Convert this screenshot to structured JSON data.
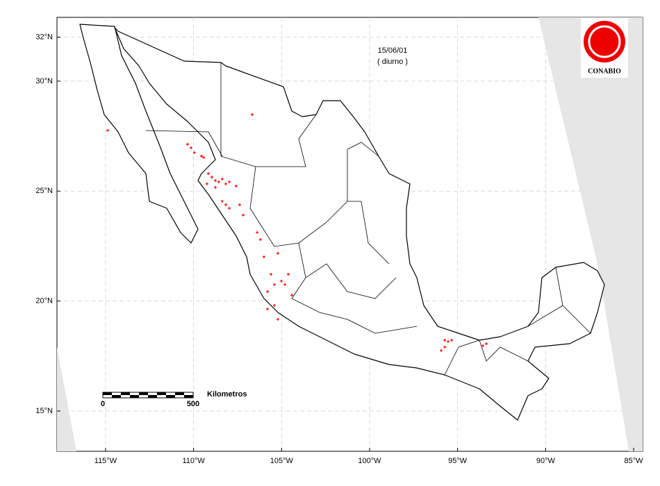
{
  "chart_data": {
    "type": "map",
    "date": "15/06/01",
    "period": "( diurno )",
    "logo": "CONABIO",
    "scale_bar": {
      "label": "Kilometros",
      "ticks": [
        0,
        500
      ]
    },
    "xlim": [
      -117.76,
      -84.49
    ],
    "ylim": [
      13.17,
      32.9
    ],
    "xticks": [
      {
        "value": -115,
        "label": "115°W"
      },
      {
        "value": -110,
        "label": "110°W"
      },
      {
        "value": -105,
        "label": "105°W"
      },
      {
        "value": -100,
        "label": "100°W"
      },
      {
        "value": -95,
        "label": "95°W"
      },
      {
        "value": -90,
        "label": "90°W"
      },
      {
        "value": -85,
        "label": "85°W"
      }
    ],
    "yticks": [
      {
        "value": 15,
        "label": "15°N"
      },
      {
        "value": 20,
        "label": "20°N"
      },
      {
        "value": 25,
        "label": "25°N"
      },
      {
        "value": 30,
        "label": "30°N"
      },
      {
        "value": 32,
        "label": "32°N"
      }
    ],
    "grid": true,
    "color": "#ff0000",
    "hotspots": {
      "lon": [
        -106.67,
        -114.88,
        -110.34,
        -110.14,
        -109.95,
        -109.55,
        -109.43,
        -109.16,
        -108.96,
        -108.76,
        -108.57,
        -108.37,
        -108.17,
        -107.97,
        -109.24,
        -108.76,
        -107.58,
        -108.37,
        -108.17,
        -107.97,
        -107.38,
        -107.18,
        -106.39,
        -106.2,
        -106.0,
        -105.21,
        -105.6,
        -105.41,
        -105.01,
        -104.62,
        -104.81,
        -105.8,
        -105.41,
        -105.8,
        -105.21,
        -104.42,
        -95.73,
        -95.54,
        -95.34,
        -95.73,
        -95.93,
        -93.37,
        -93.56
      ],
      "lat": [
        28.48,
        27.76,
        27.13,
        26.97,
        26.75,
        26.59,
        26.53,
        25.8,
        25.64,
        25.48,
        25.42,
        25.55,
        25.33,
        25.42,
        25.33,
        25.17,
        25.23,
        24.54,
        24.38,
        24.22,
        24.38,
        23.91,
        23.12,
        22.8,
        22.01,
        22.17,
        21.22,
        20.75,
        20.91,
        21.22,
        20.75,
        20.43,
        19.8,
        19.64,
        19.17,
        20.27,
        18.22,
        18.16,
        18.22,
        17.91,
        17.75,
        18.06,
        17.97
      ]
    }
  }
}
